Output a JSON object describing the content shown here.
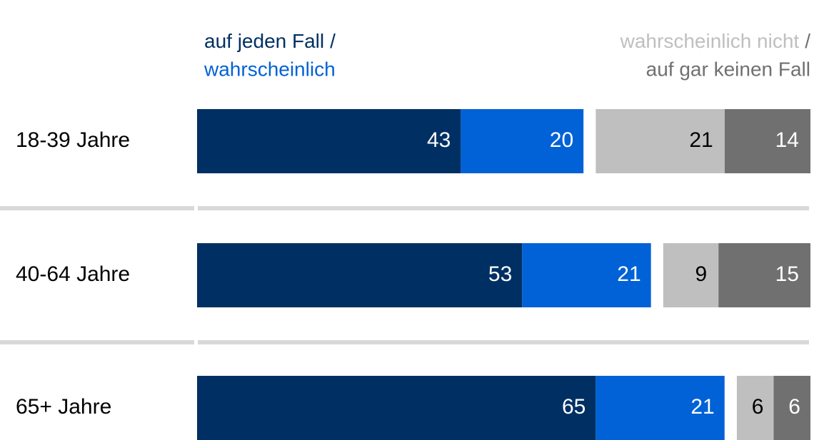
{
  "chart_data": {
    "type": "bar",
    "orientation": "horizontal",
    "stacked": true,
    "categories": [
      "18-39 Jahre",
      "40-64 Jahre",
      "65+ Jahre"
    ],
    "legend_separator": "/",
    "series": [
      {
        "name": "auf jeden Fall",
        "color": "#003063",
        "side": "left",
        "values": [
          43,
          53,
          65
        ]
      },
      {
        "name": "wahrscheinlich",
        "color": "#0062d6",
        "side": "left",
        "values": [
          20,
          21,
          21
        ]
      },
      {
        "name": "wahrscheinlich nicht",
        "color": "#bfbfbf",
        "side": "right",
        "values": [
          21,
          9,
          6
        ]
      },
      {
        "name": "auf gar keinen Fall",
        "color": "#707070",
        "side": "right",
        "values": [
          14,
          15,
          6
        ]
      }
    ]
  }
}
